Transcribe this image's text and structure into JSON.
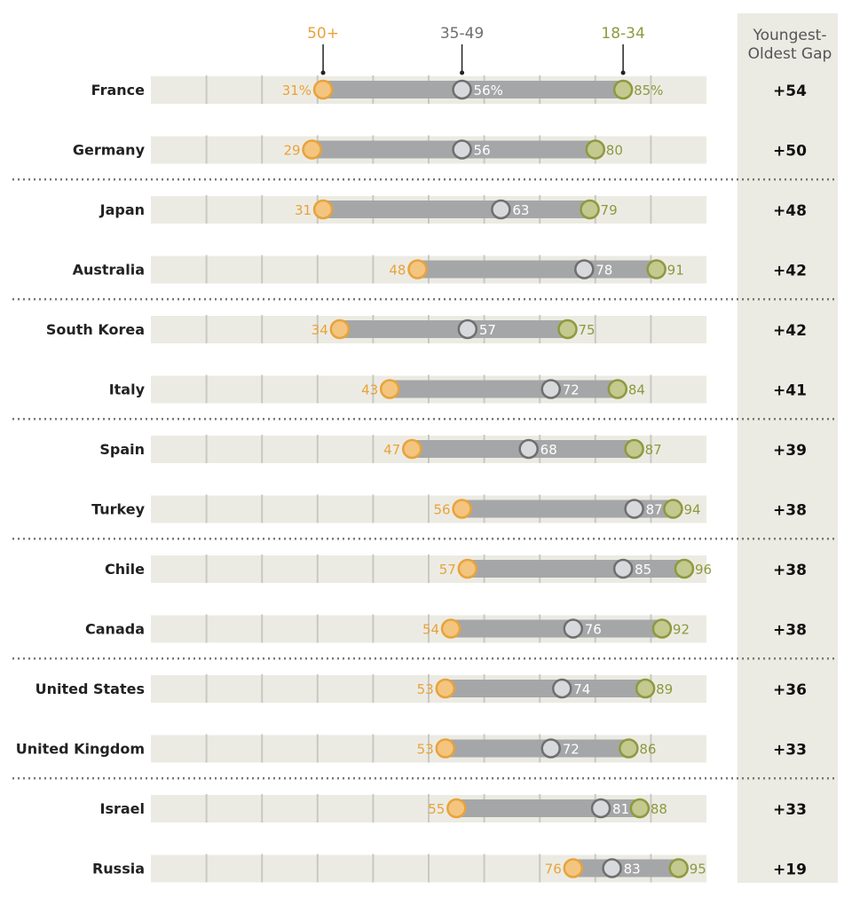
{
  "chart_data": {
    "type": "dot-range",
    "series": [
      {
        "name": "50+",
        "color": "#e8a33b"
      },
      {
        "name": "35-49",
        "color": "#6f6f6f"
      },
      {
        "name": "18-34",
        "color": "#8d9a3f"
      }
    ],
    "gap_header": [
      "Youngest-",
      "Oldest Gap"
    ],
    "xlim": [
      0,
      100
    ],
    "grid_step": 10,
    "rows": [
      {
        "country": "France",
        "old": 31,
        "mid": 56,
        "young": 85,
        "gap": "+54",
        "pct": true
      },
      {
        "country": "Germany",
        "old": 29,
        "mid": 56,
        "young": 80,
        "gap": "+50"
      },
      {
        "country": "Japan",
        "old": 31,
        "mid": 63,
        "young": 79,
        "gap": "+48"
      },
      {
        "country": "Australia",
        "old": 48,
        "mid": 78,
        "young": 91,
        "gap": "+42"
      },
      {
        "country": "South Korea",
        "old": 34,
        "mid": 57,
        "young": 75,
        "gap": "+42"
      },
      {
        "country": "Italy",
        "old": 43,
        "mid": 72,
        "young": 84,
        "gap": "+41"
      },
      {
        "country": "Spain",
        "old": 47,
        "mid": 68,
        "young": 87,
        "gap": "+39"
      },
      {
        "country": "Turkey",
        "old": 56,
        "mid": 87,
        "young": 94,
        "gap": "+38"
      },
      {
        "country": "Chile",
        "old": 57,
        "mid": 85,
        "young": 96,
        "gap": "+38"
      },
      {
        "country": "Canada",
        "old": 54,
        "mid": 76,
        "young": 92,
        "gap": "+38"
      },
      {
        "country": "United States",
        "old": 53,
        "mid": 74,
        "young": 89,
        "gap": "+36"
      },
      {
        "country": "United Kingdom",
        "old": 53,
        "mid": 72,
        "young": 86,
        "gap": "+33"
      },
      {
        "country": "Israel",
        "old": 55,
        "mid": 81,
        "young": 88,
        "gap": "+33"
      },
      {
        "country": "Russia",
        "old": 76,
        "mid": 83,
        "young": 95,
        "gap": "+19"
      }
    ]
  }
}
